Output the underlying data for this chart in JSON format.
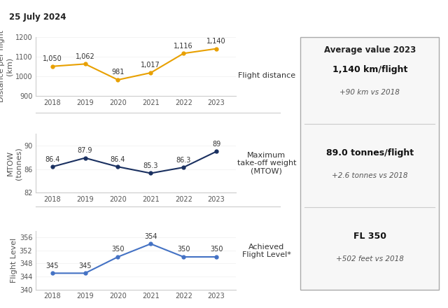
{
  "date_label": "25 July 2024",
  "avg_label": "Average value 2023",
  "years": [
    2018,
    2019,
    2020,
    2021,
    2022,
    2023
  ],
  "flight_distance": {
    "values": [
      1050,
      1062,
      981,
      1017,
      1116,
      1140
    ],
    "ylabel": "Distance per flight\n(km)",
    "ylim": [
      900,
      1200
    ],
    "yticks": [
      900,
      950,
      1000,
      1050,
      1100,
      1150,
      1200
    ],
    "color": "#E8A000",
    "label": "Flight distance",
    "avg_value": "1,140 km/flight",
    "avg_sub": "+90 km vs 2018"
  },
  "mtow": {
    "values": [
      86.4,
      87.9,
      86.4,
      85.3,
      86.3,
      89.0
    ],
    "ylabel": "MTOW\n(tonnes)",
    "ylim": [
      82,
      92
    ],
    "yticks": [
      82,
      84,
      86,
      88,
      90,
      92
    ],
    "color": "#1A3060",
    "label": "Maximum\ntake-off weight\n(MTOW)",
    "avg_value": "89.0 tonnes/flight",
    "avg_sub": "+2.6 tonnes vs 2018"
  },
  "flight_level": {
    "values": [
      345,
      345,
      350,
      354,
      350,
      350
    ],
    "ylabel": "Flight Level",
    "ylim": [
      340,
      358
    ],
    "yticks": [
      340,
      342,
      344,
      346,
      348,
      350,
      352,
      354,
      356,
      358
    ],
    "color": "#4472C4",
    "label": "Achieved\nFlight Level*",
    "avg_value": "FL 350",
    "avg_sub": "+502 feet vs 2018"
  },
  "bg_color": "#ffffff",
  "panel_bg": "#f7f7f7",
  "label_fontsize": 8,
  "tick_fontsize": 7,
  "annotation_fontsize": 7
}
